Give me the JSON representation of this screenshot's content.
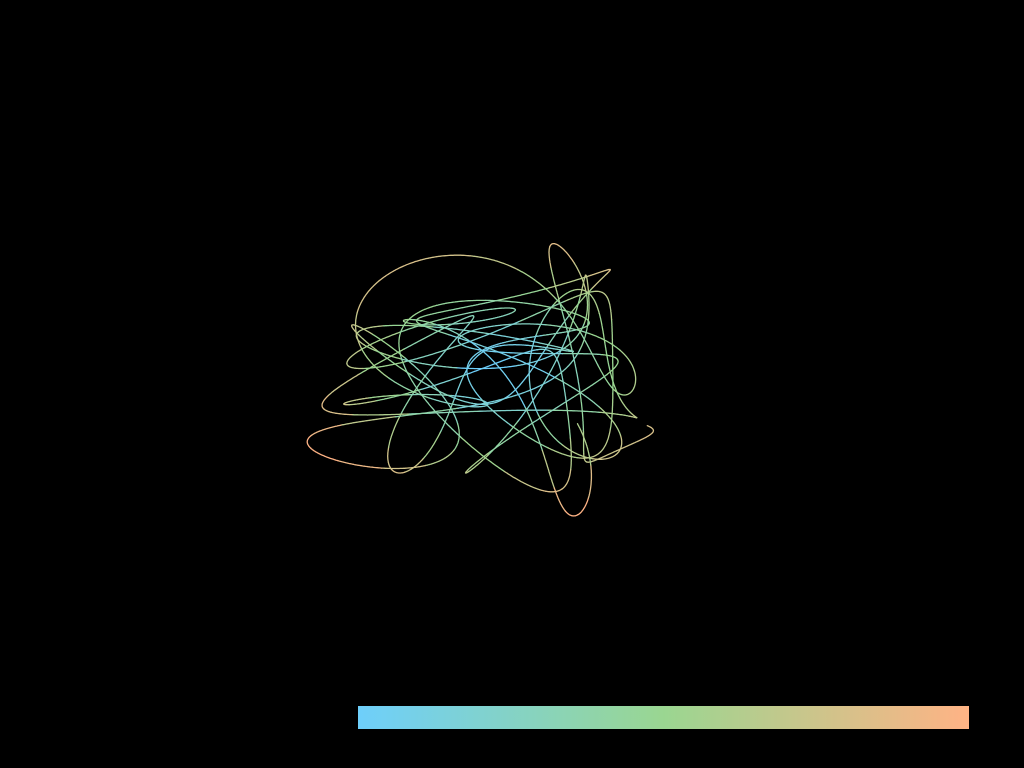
{
  "colors": {
    "background": "#000000",
    "gradient_start": "#6ECFFB",
    "gradient_mid": "#8FD7A4",
    "gradient_end": "#FFB385"
  },
  "visualization": {
    "kind": "chaotic-trajectory-curve",
    "colormap_bar": "horizontal-gradient"
  }
}
